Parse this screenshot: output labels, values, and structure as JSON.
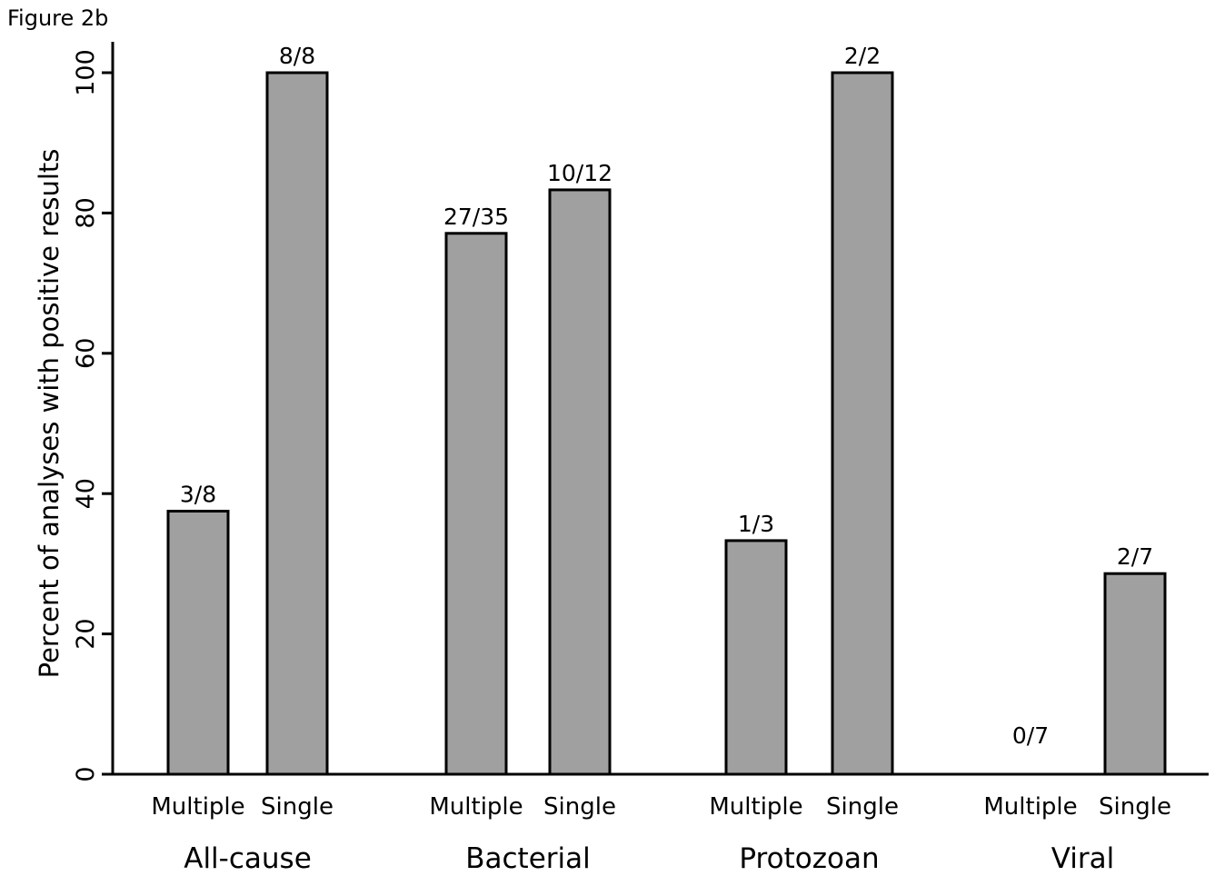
{
  "figure_label": "Figure 2b",
  "chart_data": {
    "type": "bar",
    "title": "",
    "xlabel": "",
    "ylabel": "Percent of analyses with positive results",
    "ylim": [
      0,
      100
    ],
    "yticks": [
      "0",
      "20",
      "40",
      "60",
      "80",
      "100"
    ],
    "grid": false,
    "legend": "none",
    "bar_color": "#a0a0a0",
    "groups": [
      {
        "name": "All-cause",
        "bars": [
          {
            "label": "Multiple",
            "value": 37.5,
            "annotation": "3/8"
          },
          {
            "label": "Single",
            "value": 100,
            "annotation": "8/8"
          }
        ]
      },
      {
        "name": "Bacterial",
        "bars": [
          {
            "label": "Multiple",
            "value": 77.1,
            "annotation": "27/35"
          },
          {
            "label": "Single",
            "value": 83.3,
            "annotation": "10/12"
          }
        ]
      },
      {
        "name": "Protozoan",
        "bars": [
          {
            "label": "Multiple",
            "value": 33.3,
            "annotation": "1/3"
          },
          {
            "label": "Single",
            "value": 100,
            "annotation": "2/2"
          }
        ]
      },
      {
        "name": "Viral",
        "bars": [
          {
            "label": "Multiple",
            "value": 0,
            "annotation": "0/7"
          },
          {
            "label": "Single",
            "value": 28.6,
            "annotation": "2/7"
          }
        ]
      }
    ]
  }
}
